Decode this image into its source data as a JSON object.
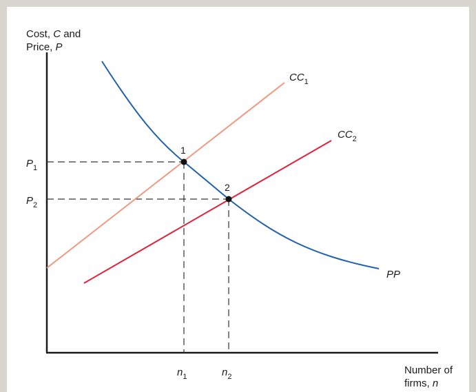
{
  "y_axis_label": {
    "line1_text": "Cost, ",
    "line1_var": "C",
    "line1_suffix": " and",
    "line2_text": "Price, ",
    "line2_var": "P"
  },
  "x_axis_label": {
    "line1": "Number of",
    "line2_text": "firms, ",
    "line2_var": "n"
  },
  "curves": {
    "cc1": {
      "main": "CC",
      "sub": "1",
      "color": "#ef9a80"
    },
    "cc2": {
      "main": "CC",
      "sub": "2",
      "color": "#e0213c"
    },
    "pp": {
      "label": "PP",
      "color": "#1f5fae"
    }
  },
  "points": {
    "p1": {
      "label": "1"
    },
    "p2": {
      "label": "2"
    }
  },
  "y_ticks": {
    "p1": {
      "main": "P",
      "sub": "1"
    },
    "p2": {
      "main": "P",
      "sub": "2"
    }
  },
  "x_ticks": {
    "n1": {
      "main": "n",
      "sub": "1"
    },
    "n2": {
      "main": "n",
      "sub": "2"
    }
  },
  "colors": {
    "background": "#ffffff",
    "frame": "#d8d6cf",
    "axis": "#1a1a1a",
    "guide": "#333333"
  }
}
